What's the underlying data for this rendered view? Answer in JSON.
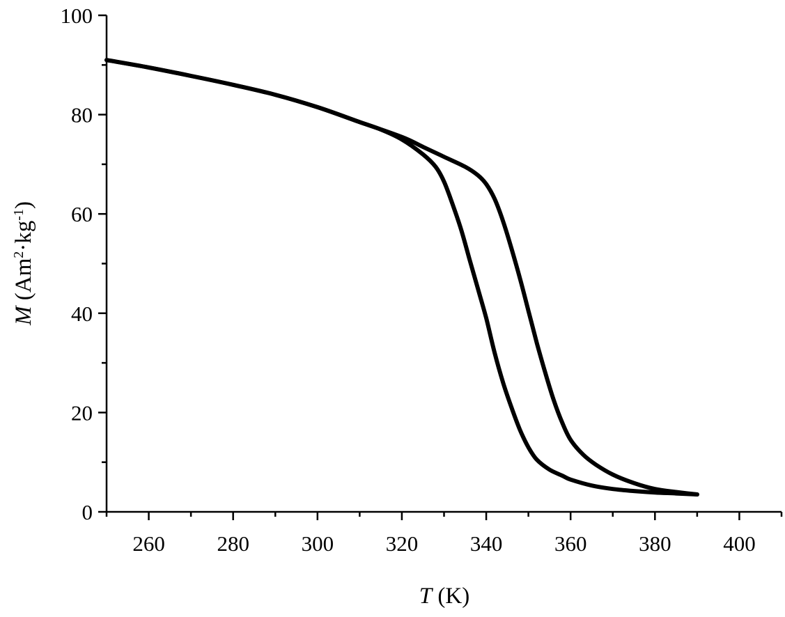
{
  "chart_data": {
    "type": "line",
    "xlabel": {
      "symbol": "T",
      "unit": " (K)"
    },
    "ylabel": {
      "symbol": "M",
      "unit_before": " (Am",
      "sup1": "2",
      "unit_mid": "·kg",
      "sup2": "-1",
      "unit_after": ")"
    },
    "xlim": [
      250,
      410
    ],
    "ylim": [
      0,
      100
    ],
    "x_ticks": [
      260,
      280,
      300,
      320,
      340,
      360,
      380,
      400
    ],
    "y_ticks": [
      0,
      20,
      40,
      60,
      80,
      100
    ],
    "grid": false,
    "series": [
      {
        "x": [
          250,
          260,
          270,
          280,
          290,
          300,
          310,
          315,
          320,
          325,
          328,
          330,
          332,
          334,
          336,
          338,
          340,
          342,
          344,
          346,
          348,
          350,
          352,
          355,
          358,
          360,
          365,
          370,
          375,
          380,
          385,
          390
        ],
        "y": [
          91,
          89.5,
          87.8,
          86,
          84,
          81.5,
          78.5,
          77,
          75,
          72,
          69.5,
          66.5,
          62,
          57,
          51,
          45,
          39,
          32,
          26,
          21,
          16.5,
          13,
          10.5,
          8.5,
          7.3,
          6.5,
          5.3,
          4.6,
          4.2,
          3.9,
          3.7,
          3.5
        ]
      },
      {
        "x": [
          250,
          260,
          270,
          280,
          290,
          300,
          310,
          320,
          325,
          330,
          335,
          338,
          340,
          342,
          344,
          346,
          348,
          350,
          352,
          354,
          356,
          358,
          360,
          363,
          366,
          370,
          375,
          380,
          385,
          390
        ],
        "y": [
          91,
          89.5,
          87.8,
          86,
          84,
          81.5,
          78.5,
          75.5,
          73.5,
          71.5,
          69.5,
          67.8,
          66,
          63,
          58.5,
          53,
          47,
          40.5,
          34,
          28,
          22.5,
          18,
          14.5,
          11.5,
          9.5,
          7.5,
          5.8,
          4.6,
          4,
          3.5
        ]
      }
    ]
  }
}
